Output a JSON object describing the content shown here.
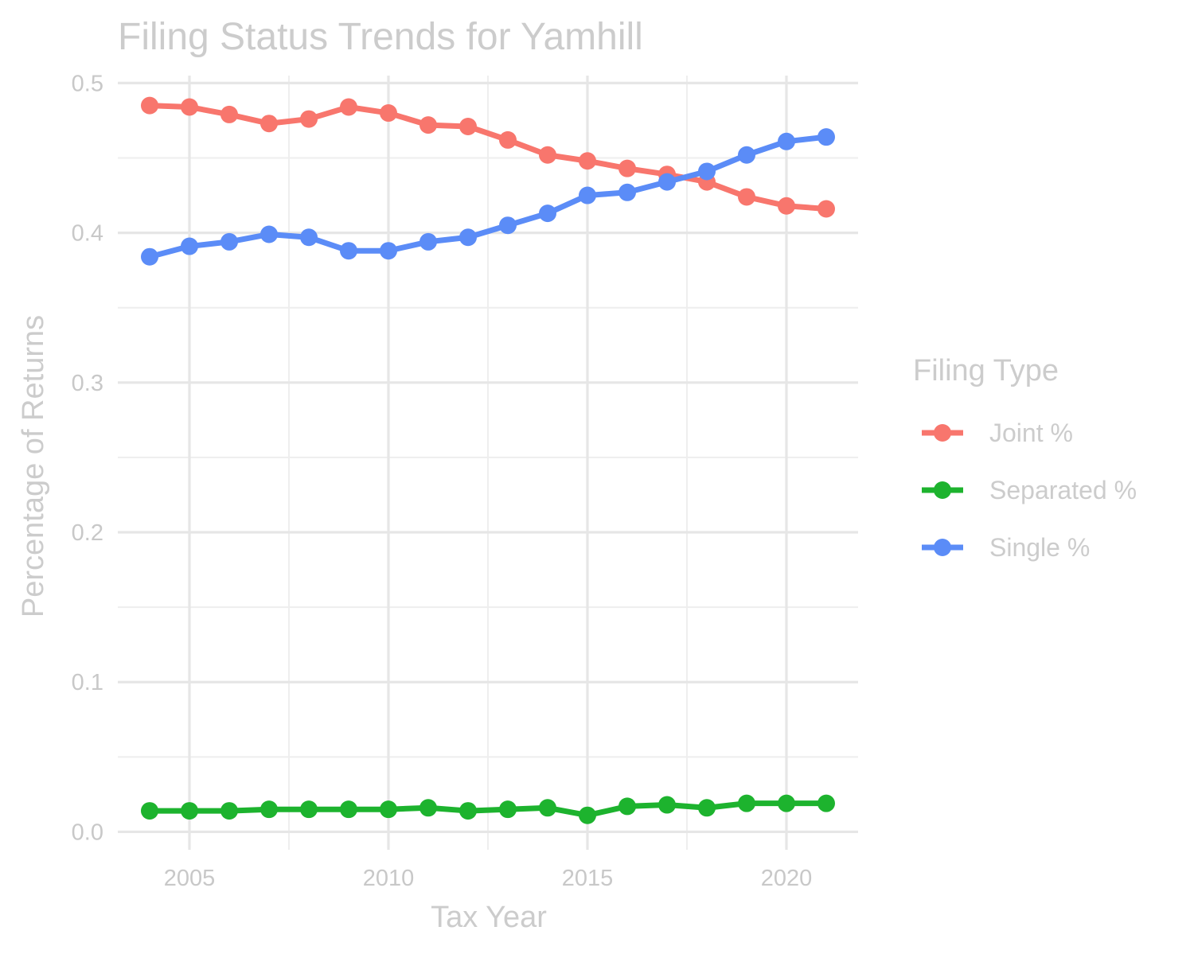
{
  "chart_data": {
    "type": "line",
    "title": "Filing Status Trends for Yamhill",
    "xlabel": "Tax Year",
    "ylabel": "Percentage of Returns",
    "xlim": [
      2003.2,
      2021.8
    ],
    "ylim": [
      -0.012,
      0.505
    ],
    "x_ticks": [
      2005,
      2010,
      2015,
      2020
    ],
    "x_tick_labels": [
      "2005",
      "2010",
      "2015",
      "2020"
    ],
    "y_ticks": [
      0.0,
      0.1,
      0.2,
      0.3,
      0.4,
      0.5
    ],
    "y_tick_labels": [
      "0.0",
      "0.1",
      "0.2",
      "0.3",
      "0.4",
      "0.5"
    ],
    "grid": true,
    "legend": {
      "title": "Filing Type",
      "placement": "right"
    },
    "x": [
      2004,
      2005,
      2006,
      2007,
      2008,
      2009,
      2010,
      2011,
      2012,
      2013,
      2014,
      2015,
      2016,
      2017,
      2018,
      2019,
      2020,
      2021
    ],
    "series": [
      {
        "name": "Joint %",
        "color": "#F8766D",
        "values": [
          0.485,
          0.484,
          0.479,
          0.473,
          0.476,
          0.484,
          0.48,
          0.472,
          0.471,
          0.462,
          0.452,
          0.448,
          0.443,
          0.439,
          0.434,
          0.424,
          0.418,
          0.416
        ]
      },
      {
        "name": "Separated %",
        "color": "#1DB32E",
        "values": [
          0.014,
          0.014,
          0.014,
          0.015,
          0.015,
          0.015,
          0.015,
          0.016,
          0.014,
          0.015,
          0.016,
          0.011,
          0.017,
          0.018,
          0.016,
          0.019,
          0.019,
          0.019
        ]
      },
      {
        "name": "Single %",
        "color": "#5B8CF7",
        "values": [
          0.384,
          0.391,
          0.394,
          0.399,
          0.397,
          0.388,
          0.388,
          0.394,
          0.397,
          0.405,
          0.413,
          0.425,
          0.427,
          0.434,
          0.441,
          0.452,
          0.461,
          0.464
        ]
      }
    ]
  }
}
